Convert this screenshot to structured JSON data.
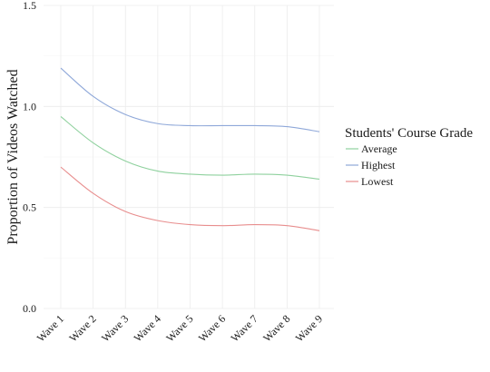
{
  "chart_data": {
    "type": "line",
    "title": "",
    "xlabel": "",
    "ylabel": "Proportion of Videos Watched",
    "categories": [
      "Wave 1",
      "Wave 2",
      "Wave 3",
      "Wave 4",
      "Wave 5",
      "Wave 6",
      "Wave 7",
      "Wave 8",
      "Wave 9"
    ],
    "ylim": [
      0,
      1.5
    ],
    "yticks": [
      0.0,
      0.5,
      1.0,
      1.5
    ],
    "ytick_labels": [
      "0.0",
      "0.5",
      "1.0",
      "1.5"
    ],
    "grid": true,
    "legend": {
      "title": "Students' Course Grade",
      "placement": "right"
    },
    "series": [
      {
        "name": "Average",
        "color": "#8fd19e",
        "values": [
          0.95,
          0.82,
          0.73,
          0.68,
          0.665,
          0.66,
          0.665,
          0.66,
          0.64
        ]
      },
      {
        "name": "Highest",
        "color": "#8fa8d9",
        "values": [
          1.19,
          1.05,
          0.96,
          0.915,
          0.905,
          0.905,
          0.905,
          0.9,
          0.875
        ]
      },
      {
        "name": "Lowest",
        "color": "#e88e8e",
        "values": [
          0.7,
          0.57,
          0.48,
          0.435,
          0.415,
          0.41,
          0.415,
          0.41,
          0.385
        ]
      }
    ]
  }
}
